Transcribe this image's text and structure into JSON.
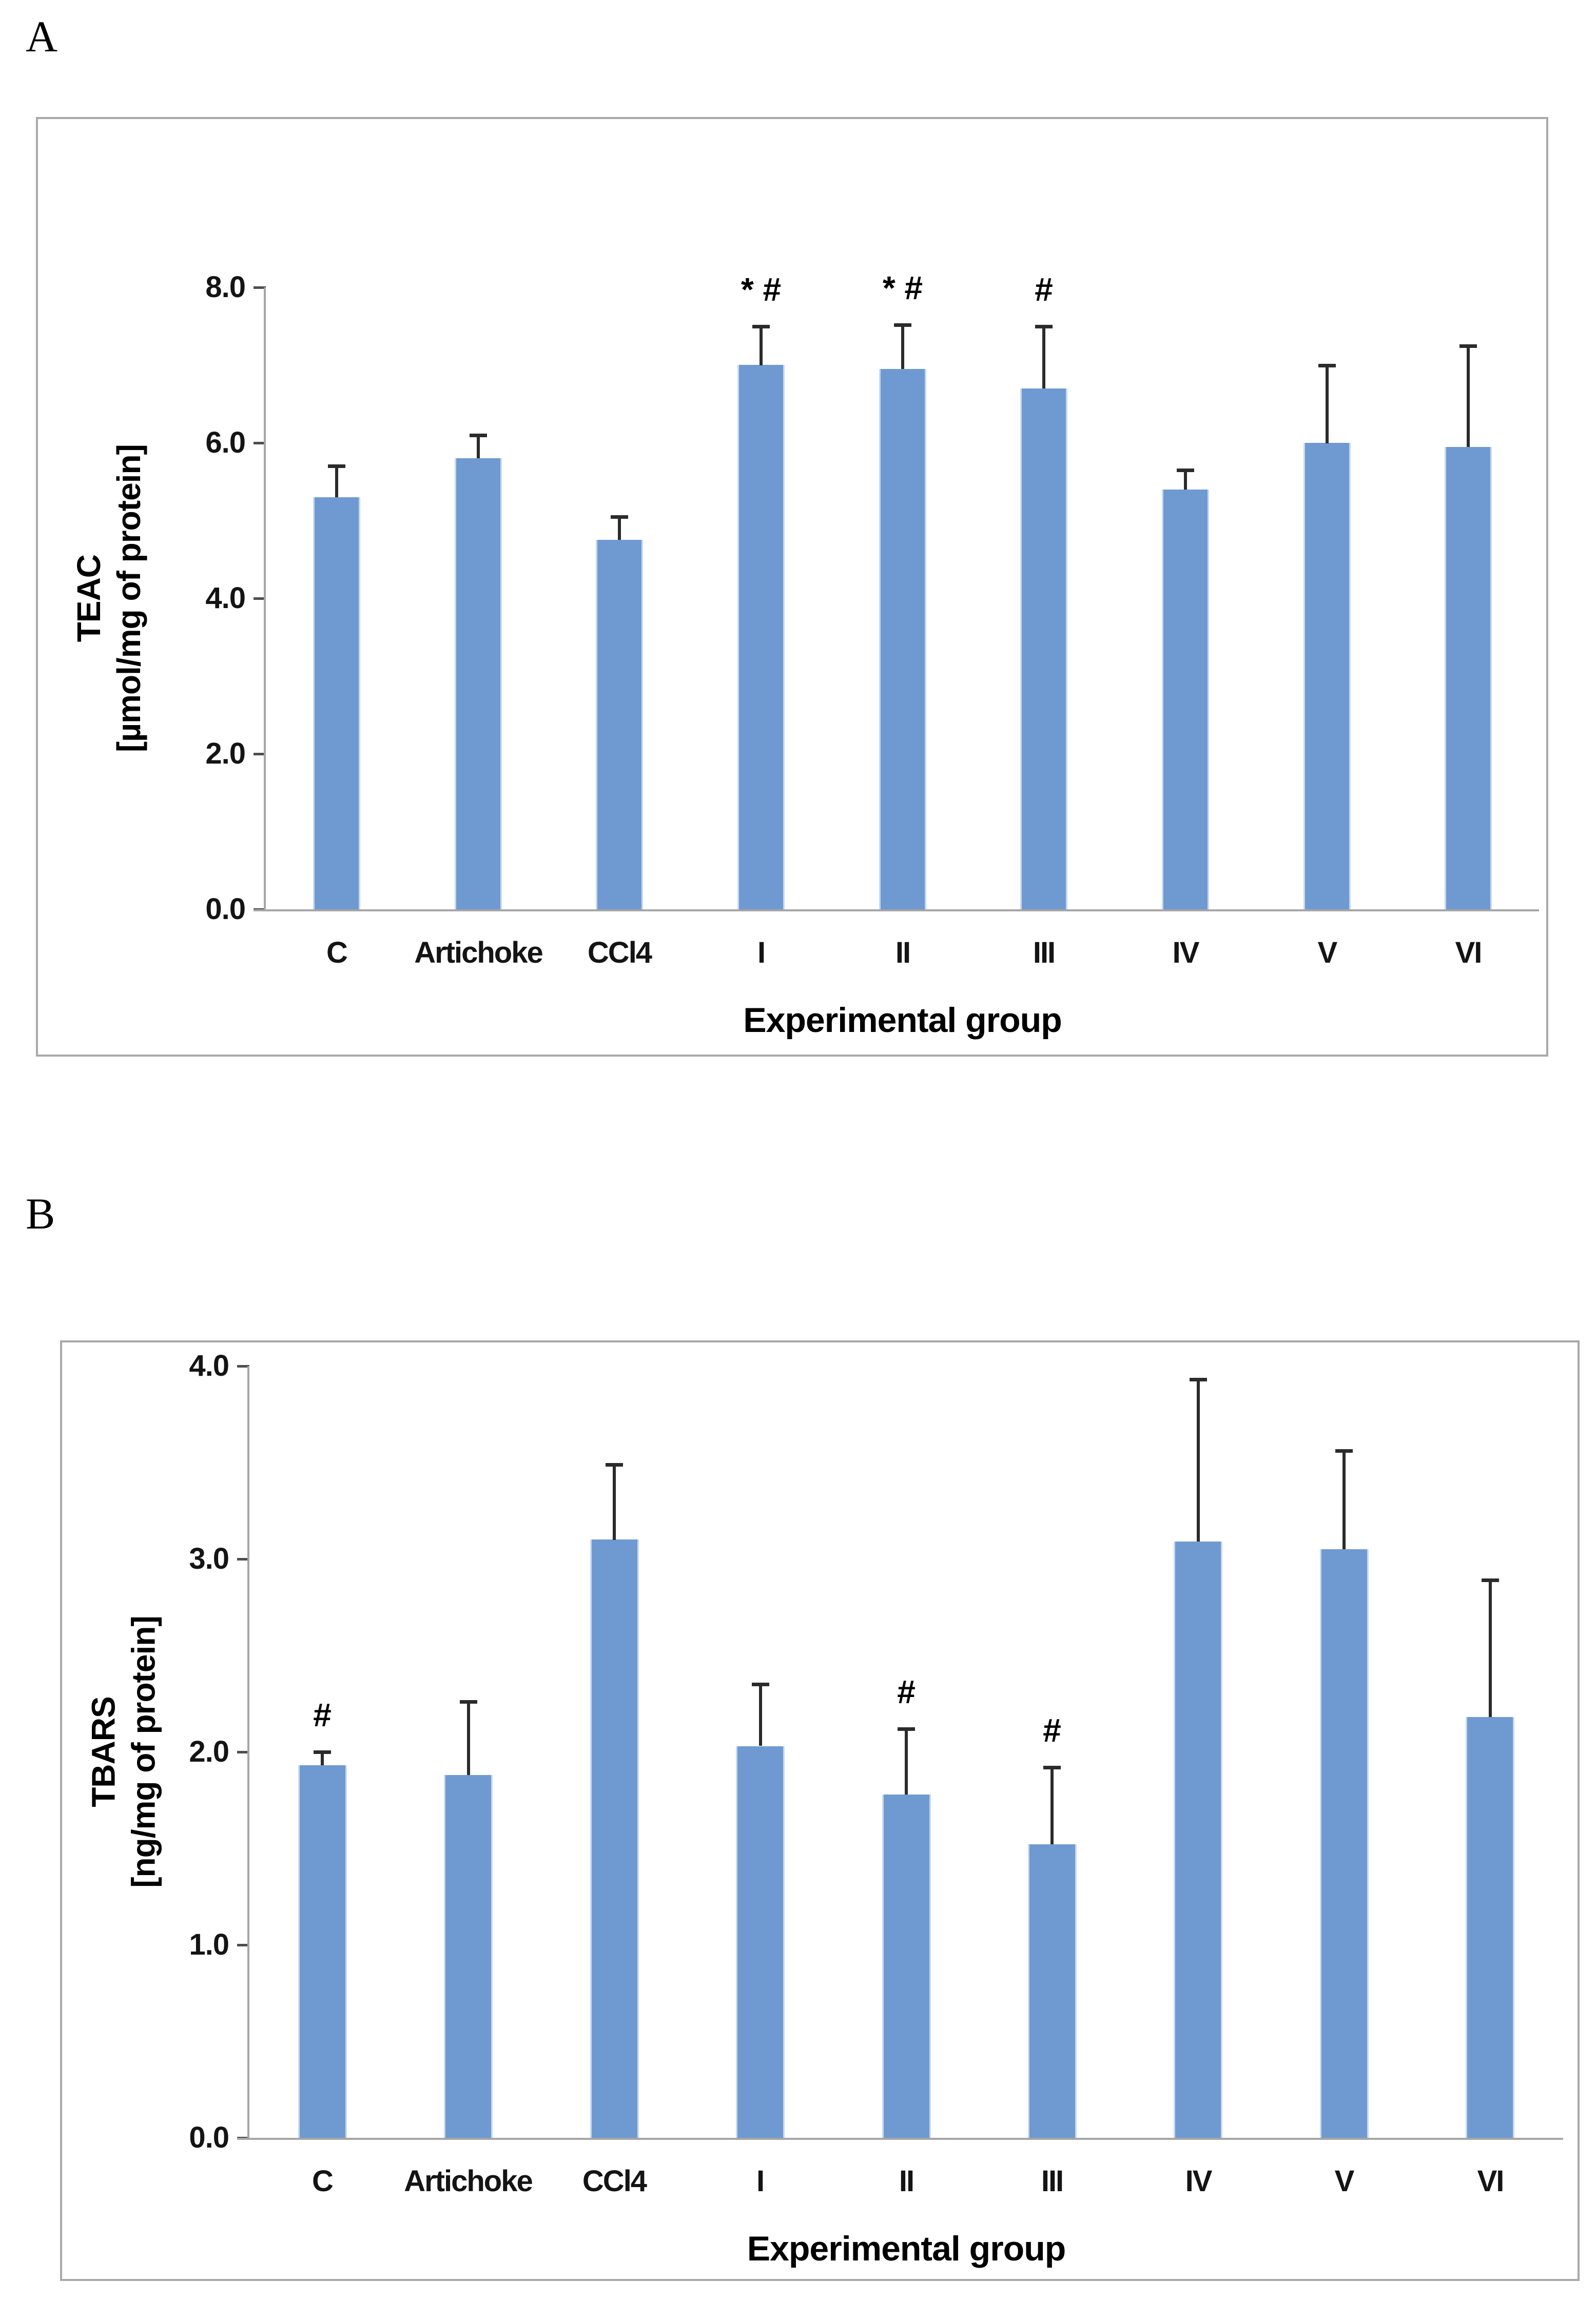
{
  "figure": {
    "panels": [
      {
        "label": "A"
      },
      {
        "label": "B"
      }
    ]
  },
  "colors": {
    "bar_fill": "#6F9AD1",
    "bar_edge": "#C9D8EF",
    "error_bar": "#2B2B2B",
    "axis_line": "#A6A6A6",
    "panel_border": "#A9A9A9",
    "text": "#000000"
  },
  "chart_data": [
    {
      "type": "bar",
      "panel": "A",
      "title": "",
      "xlabel": "Experimental group",
      "ylabel_lines": [
        "TEAC",
        "[µmol/mg of protein]"
      ],
      "categories": [
        "C",
        "Artichoke",
        "CCl4",
        "I",
        "II",
        "III",
        "IV",
        "V",
        "VI"
      ],
      "values": [
        5.3,
        5.8,
        4.75,
        7.0,
        6.95,
        6.7,
        5.4,
        6.0,
        5.95
      ],
      "errors": [
        0.4,
        0.3,
        0.3,
        0.5,
        0.57,
        0.8,
        0.25,
        1.0,
        1.3
      ],
      "annotations": [
        "",
        "",
        "",
        "* #",
        "* #",
        "#",
        "",
        "",
        ""
      ],
      "ylim": [
        0,
        8
      ],
      "yticks": [
        {
          "value": 0,
          "label": "0.0"
        },
        {
          "value": 2,
          "label": "2.0"
        },
        {
          "value": 4,
          "label": "4.0"
        },
        {
          "value": 6,
          "label": "6.0"
        },
        {
          "value": 8,
          "label": "8.0"
        }
      ],
      "grid": false,
      "legend": null
    },
    {
      "type": "bar",
      "panel": "B",
      "title": "",
      "xlabel": "Experimental group",
      "ylabel_lines": [
        "TBARS",
        "[ng/mg of protein]"
      ],
      "categories": [
        "C",
        "Artichoke",
        "CCl4",
        "I",
        "II",
        "III",
        "IV",
        "V",
        "VI"
      ],
      "values": [
        1.93,
        1.88,
        3.1,
        2.03,
        1.78,
        1.52,
        3.09,
        3.05,
        2.18
      ],
      "errors": [
        0.07,
        0.38,
        0.39,
        0.32,
        0.34,
        0.4,
        0.84,
        0.51,
        0.71
      ],
      "annotations": [
        "#",
        "",
        "",
        "",
        "#",
        "#",
        "",
        "",
        ""
      ],
      "ylim": [
        0,
        4
      ],
      "yticks": [
        {
          "value": 0,
          "label": "0.0"
        },
        {
          "value": 1,
          "label": "1.0"
        },
        {
          "value": 2,
          "label": "2.0"
        },
        {
          "value": 3,
          "label": "3.0"
        },
        {
          "value": 4,
          "label": "4.0"
        }
      ],
      "grid": false,
      "legend": null
    }
  ]
}
